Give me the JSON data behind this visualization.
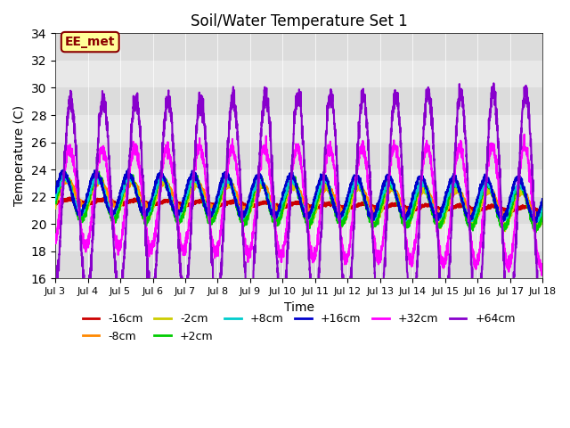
{
  "title": "Soil/Water Temperature Set 1",
  "xlabel": "Time",
  "ylabel": "Temperature (C)",
  "xlim": [
    0,
    15
  ],
  "ylim": [
    16,
    34
  ],
  "yticks": [
    16,
    18,
    20,
    22,
    24,
    26,
    28,
    30,
    32,
    34
  ],
  "xtick_labels": [
    "Jul 3",
    "Jul 4",
    "Jul 5",
    "Jul 6",
    "Jul 7",
    "Jul 8",
    "Jul 9",
    "Jul 10",
    "Jul 11",
    "Jul 12",
    "Jul 13",
    "Jul 14",
    "Jul 15",
    "Jul 16",
    "Jul 17",
    "Jul 18"
  ],
  "annotation_text": "EE_met",
  "annotation_bg": "#ffff99",
  "annotation_border": "#8B0000",
  "bg_bands": [
    "#dcdcdc",
    "#e8e8e8"
  ],
  "series_colors": {
    "-16cm": "#cc0000",
    "-8cm": "#ff8800",
    "-2cm": "#cccc00",
    "+2cm": "#00cc00",
    "+8cm": "#00cccc",
    "+16cm": "#0000cc",
    "+32cm": "#ff00ff",
    "+64cm": "#8800cc"
  }
}
